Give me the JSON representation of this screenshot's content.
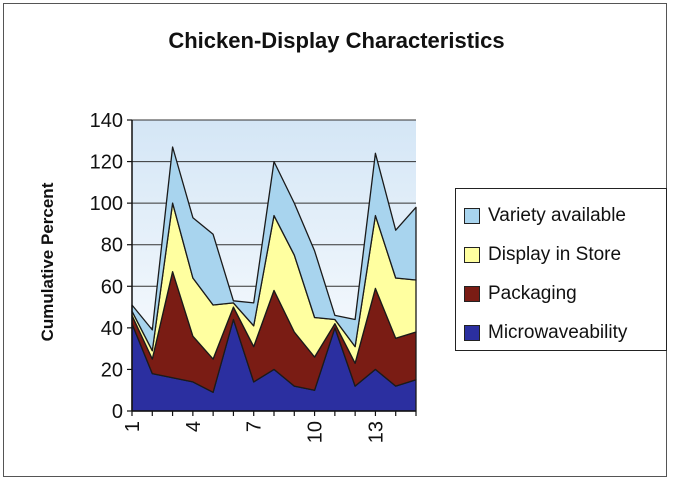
{
  "chart_data": {
    "type": "area",
    "stacked": true,
    "title": "Chicken-Display Characteristics",
    "xlabel": "",
    "ylabel": "Cumulative Percent",
    "ylim": [
      0,
      140
    ],
    "yticks": [
      0,
      20,
      40,
      60,
      80,
      100,
      120,
      140
    ],
    "x": [
      1,
      2,
      3,
      4,
      5,
      6,
      7,
      8,
      9,
      10,
      11,
      12,
      13,
      14,
      15
    ],
    "xtick_labels": [
      "1",
      "4",
      "7",
      "10",
      "13"
    ],
    "xtick_positions": [
      1,
      4,
      7,
      10,
      13
    ],
    "grid": true,
    "legend_position": "right",
    "series": [
      {
        "name": "Microwaveability",
        "color": "#2b2fa0",
        "values": [
          42,
          18,
          16,
          14,
          9,
          44,
          14,
          20,
          12,
          10,
          40,
          12,
          20,
          12,
          15
        ]
      },
      {
        "name": "Packaging",
        "color": "#7a1c14",
        "values": [
          4,
          7,
          51,
          22,
          16,
          6,
          17,
          38,
          26,
          16,
          2,
          11,
          39,
          23,
          23
        ]
      },
      {
        "name": "Display in Store",
        "color": "#ffffa0",
        "values": [
          2,
          4,
          33,
          28,
          26,
          2,
          10,
          36,
          37,
          19,
          2,
          8,
          35,
          29,
          25
        ]
      },
      {
        "name": "Variety available",
        "color": "#a8d4ee",
        "values": [
          3,
          10,
          27,
          29,
          34,
          1,
          11,
          26,
          25,
          32,
          2,
          13,
          30,
          23,
          35
        ]
      }
    ]
  },
  "colors": {
    "plot_background": "#ffffff",
    "gridline": "#333333",
    "outline": "#1a1a1a"
  }
}
